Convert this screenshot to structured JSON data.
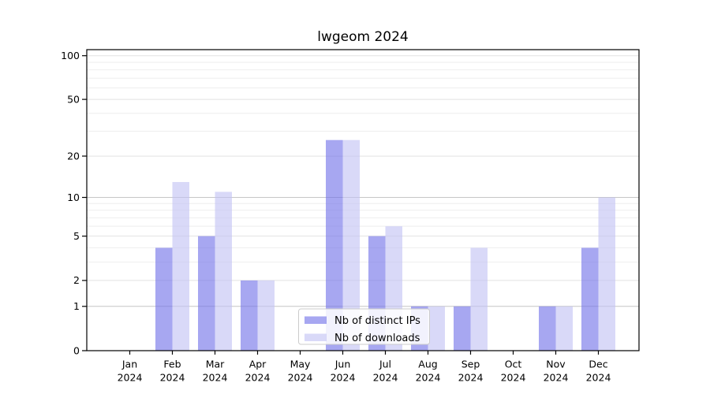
{
  "title": "lwgeom 2024",
  "chart_data": {
    "type": "bar",
    "title": "lwgeom 2024",
    "categories": [
      "Jan 2024",
      "Feb 2024",
      "Mar 2024",
      "Apr 2024",
      "May 2024",
      "Jun 2024",
      "Jul 2024",
      "Aug 2024",
      "Sep 2024",
      "Oct 2024",
      "Nov 2024",
      "Dec 2024"
    ],
    "series": [
      {
        "name": "Nb of distinct IPs",
        "values": [
          0,
          4,
          5,
          2,
          0,
          26,
          5,
          1,
          1,
          0,
          1,
          4
        ],
        "color": "rgba(113,113,232,0.62)"
      },
      {
        "name": "Nb of downloads",
        "values": [
          0,
          13,
          11,
          2,
          0,
          26,
          6,
          1,
          4,
          0,
          1,
          10
        ],
        "color": "rgba(193,193,243,0.62)"
      }
    ],
    "xlabel": "",
    "ylabel": "",
    "yscale": "log1p",
    "ylim": [
      0,
      110
    ],
    "yticks": [
      0,
      1,
      2,
      5,
      10,
      20,
      50,
      100
    ],
    "yticks_minor": [
      3,
      4,
      6,
      7,
      8,
      9,
      30,
      40,
      60,
      70,
      80,
      90
    ],
    "grid": true,
    "legend_position": "lower center"
  },
  "colors": {
    "axis": "#000000",
    "grid_major": "#c6c6c6",
    "grid_mid": "#e2e2e2",
    "grid_minor": "#eeeeee",
    "legend_border": "#cccccc",
    "legend_bg": "rgba(255,255,255,0.85)",
    "bar_ips": "rgba(113,113,232,0.62)",
    "bar_downloads": "rgba(193,193,243,0.62)"
  }
}
